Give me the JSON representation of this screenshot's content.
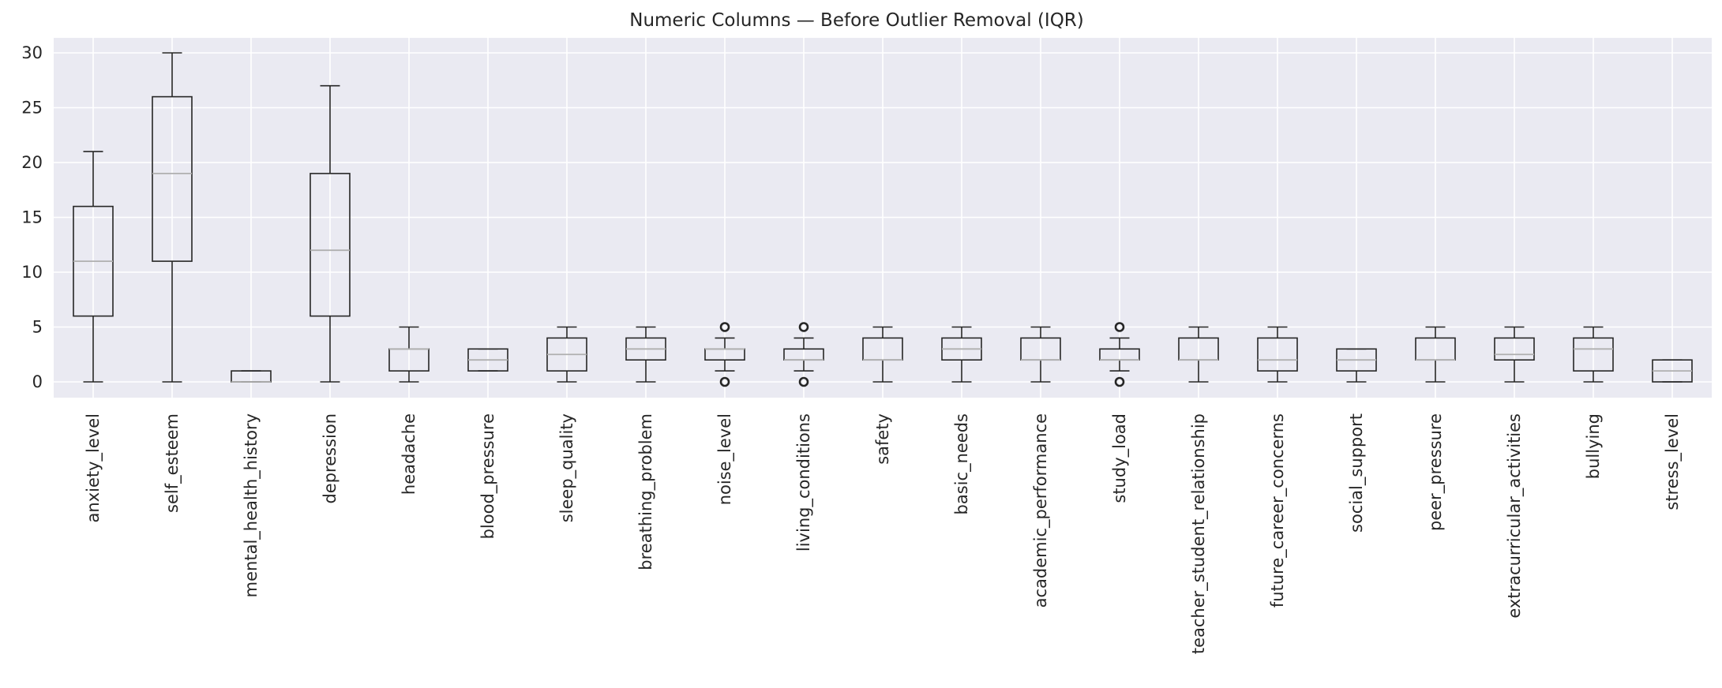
{
  "chart_data": {
    "type": "boxplot",
    "title": "Numeric Columns — Before Outlier Removal (IQR)",
    "xlabel": "",
    "ylabel": "",
    "ylim": [
      -1.5,
      31.5
    ],
    "yticks": [
      0,
      5,
      10,
      15,
      20,
      25,
      30
    ],
    "ytick_labels": [
      "0",
      "5",
      "10",
      "15",
      "20",
      "25",
      "30"
    ],
    "grid": true,
    "legend": "none",
    "colors": {
      "background": "#eaeaf2",
      "grid": "#ffffff",
      "box": "#262626",
      "median": "#b0b0b0",
      "outlier": "#262626"
    },
    "categories": [
      "anxiety_level",
      "self_esteem",
      "mental_health_history",
      "depression",
      "headache",
      "blood_pressure",
      "sleep_quality",
      "breathing_problem",
      "noise_level",
      "living_conditions",
      "safety",
      "basic_needs",
      "academic_performance",
      "study_load",
      "teacher_student_relationship",
      "future_career_concerns",
      "social_support",
      "peer_pressure",
      "extracurricular_activities",
      "bullying",
      "stress_level"
    ],
    "boxes": [
      {
        "min": 0,
        "q1": 6,
        "median": 11,
        "q3": 16,
        "max": 21,
        "outliers": []
      },
      {
        "min": 0,
        "q1": 11,
        "median": 19,
        "q3": 26,
        "max": 30,
        "outliers": []
      },
      {
        "min": 0,
        "q1": 0,
        "median": 0,
        "q3": 1,
        "max": 1,
        "outliers": []
      },
      {
        "min": 0,
        "q1": 6,
        "median": 12,
        "q3": 19,
        "max": 27,
        "outliers": []
      },
      {
        "min": 0,
        "q1": 1,
        "median": 3,
        "q3": 3,
        "max": 5,
        "outliers": []
      },
      {
        "min": 1,
        "q1": 1,
        "median": 2,
        "q3": 3,
        "max": 3,
        "outliers": []
      },
      {
        "min": 0,
        "q1": 1,
        "median": 2.5,
        "q3": 4,
        "max": 5,
        "outliers": []
      },
      {
        "min": 0,
        "q1": 2,
        "median": 3,
        "q3": 4,
        "max": 5,
        "outliers": []
      },
      {
        "min": 1,
        "q1": 2,
        "median": 3,
        "q3": 3,
        "max": 4,
        "outliers": [
          0,
          5
        ]
      },
      {
        "min": 1,
        "q1": 2,
        "median": 2,
        "q3": 3,
        "max": 4,
        "outliers": [
          0,
          5
        ]
      },
      {
        "min": 0,
        "q1": 2,
        "median": 2,
        "q3": 4,
        "max": 5,
        "outliers": []
      },
      {
        "min": 0,
        "q1": 2,
        "median": 3,
        "q3": 4,
        "max": 5,
        "outliers": []
      },
      {
        "min": 0,
        "q1": 2,
        "median": 2,
        "q3": 4,
        "max": 5,
        "outliers": []
      },
      {
        "min": 1,
        "q1": 2,
        "median": 2,
        "q3": 3,
        "max": 4,
        "outliers": [
          0,
          5
        ]
      },
      {
        "min": 0,
        "q1": 2,
        "median": 2,
        "q3": 4,
        "max": 5,
        "outliers": []
      },
      {
        "min": 0,
        "q1": 1,
        "median": 2,
        "q3": 4,
        "max": 5,
        "outliers": []
      },
      {
        "min": 0,
        "q1": 1,
        "median": 2,
        "q3": 3,
        "max": 3,
        "outliers": []
      },
      {
        "min": 0,
        "q1": 2,
        "median": 2,
        "q3": 4,
        "max": 5,
        "outliers": []
      },
      {
        "min": 0,
        "q1": 2,
        "median": 2.5,
        "q3": 4,
        "max": 5,
        "outliers": []
      },
      {
        "min": 0,
        "q1": 1,
        "median": 3,
        "q3": 4,
        "max": 5,
        "outliers": []
      },
      {
        "min": 0,
        "q1": 0,
        "median": 1,
        "q3": 2,
        "max": 2,
        "outliers": []
      }
    ]
  }
}
